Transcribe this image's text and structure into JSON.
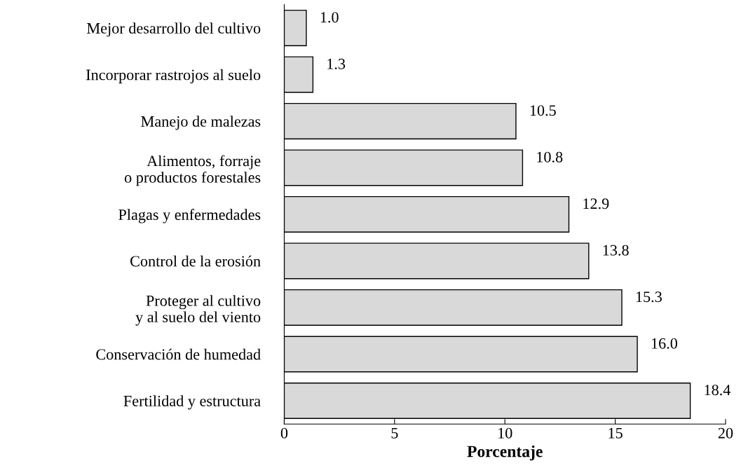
{
  "chart_data": {
    "type": "bar",
    "orientation": "horizontal",
    "xlabel": "Porcentaje",
    "categories": [
      "Mejor desarrollo del cultivo",
      "Incorporar rastrojos al suelo",
      "Manejo de malezas",
      "Alimentos, forraje\no productos forestales",
      "Plagas y enfermedades",
      "Control de la erosión",
      "Proteger al cultivo\ny al suelo del viento",
      "Conservación de humedad",
      "Fertilidad y estructura"
    ],
    "values": [
      1.0,
      1.3,
      10.5,
      10.8,
      12.9,
      13.8,
      15.3,
      16.0,
      18.4
    ],
    "value_labels": [
      "1.0",
      "1.3",
      "10.5",
      "10.8",
      "12.9",
      "13.8",
      "15.3",
      "16.0",
      "18.4"
    ],
    "color": "#d9d9d9",
    "grid": false,
    "xlim": [
      0,
      20
    ],
    "xticks": [
      0,
      5,
      10,
      15,
      20
    ]
  }
}
